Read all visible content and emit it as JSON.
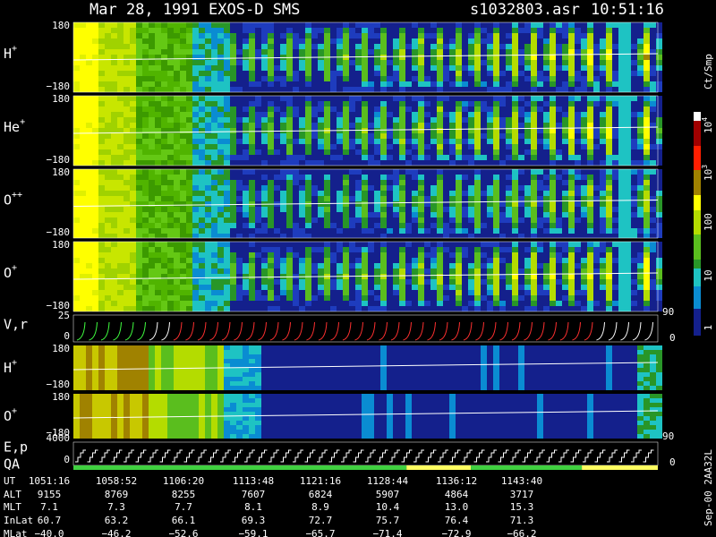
{
  "header": {
    "title": "Mar 28, 1991   EXOS-D SMS",
    "file": "s1032803.asr",
    "time": "10:51:16"
  },
  "panels": [
    {
      "species": "H",
      "charge": "+",
      "top": "180",
      "bottom": "−180"
    },
    {
      "species": "He",
      "charge": "+",
      "top": "180",
      "bottom": "−180"
    },
    {
      "species": "O",
      "charge": "++",
      "top": "180",
      "bottom": "−180"
    },
    {
      "species": "O",
      "charge": "+",
      "top": "180",
      "bottom": "−180"
    }
  ],
  "velocity_panel": {
    "label": "V,r",
    "top": "25",
    "bottom": "0",
    "right_top": "90",
    "right_bottom": "0"
  },
  "lower_panels": [
    {
      "species": "H",
      "charge": "+",
      "top": "180",
      "bottom": "−180"
    },
    {
      "species": "O",
      "charge": "+",
      "top": "180",
      "bottom": "−180",
      "right": "90"
    }
  ],
  "energy_panel": {
    "label": "E,p",
    "top": "4000",
    "bottom": "0",
    "right": "0",
    "qa": "QA"
  },
  "colorbar": {
    "unit": "Ct/Smp",
    "labels": [
      {
        "base": "10",
        "exp": "4"
      },
      {
        "base": "10",
        "exp": "3"
      },
      {
        "base": "100"
      },
      {
        "base": "10"
      },
      {
        "base": "1"
      }
    ]
  },
  "table": {
    "rows": [
      {
        "name": "UT",
        "values": [
          "1051:16",
          "1058:52",
          "1106:20",
          "1113:48",
          "1121:16",
          "1128:44",
          "1136:12",
          "1143:40"
        ]
      },
      {
        "name": "ALT",
        "values": [
          "9155",
          "8769",
          "8255",
          "7607",
          "6824",
          "5907",
          "4864",
          "3717"
        ]
      },
      {
        "name": "MLT",
        "values": [
          "7.1",
          "7.3",
          "7.7",
          "8.1",
          "8.9",
          "10.4",
          "13.0",
          "15.3"
        ]
      },
      {
        "name": "InLat",
        "values": [
          "60.7",
          "63.2",
          "66.1",
          "69.3",
          "72.7",
          "75.7",
          "76.4",
          "71.3"
        ]
      },
      {
        "name": "MLat",
        "values": [
          "−40.0",
          "−46.2",
          "−52.6",
          "−59.1",
          "−65.7",
          "−71.4",
          "−72.9",
          "−66.2"
        ]
      }
    ]
  },
  "footer": "Sep-00  2AA32L"
}
